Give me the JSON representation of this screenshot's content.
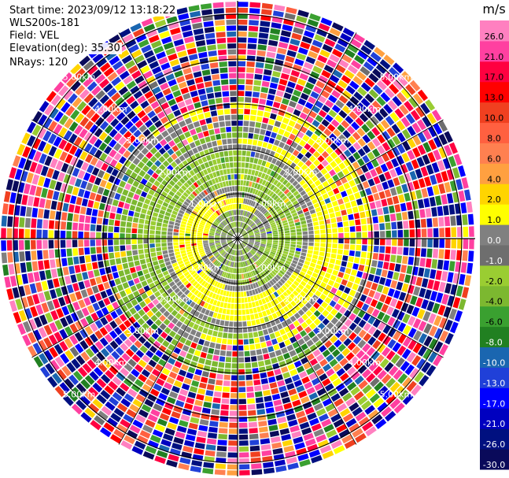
{
  "header": {
    "start_time": "Start time: 2023/09/12 13:18:22",
    "instrument": "WLS200s-181",
    "field": "Field: VEL",
    "elevation": "Elevation(deg): 35.30",
    "nrays": "NRays: 120"
  },
  "chart_data": {
    "type": "heatmap",
    "projection": "polar (PPI)",
    "range_rings_km": [
      1.0,
      2.0,
      3.0,
      4.0,
      5.0
    ],
    "ring_labels": [
      "1.00km",
      "2.00km",
      "3.00km",
      "4.00km",
      "5.00km"
    ],
    "colorbar": {
      "unit": "m/s",
      "bounds": [
        -30,
        -26,
        -21,
        -17,
        -13,
        -10,
        -8,
        -6,
        -4,
        -2,
        -1,
        0,
        1,
        2,
        4,
        6,
        8,
        10,
        13,
        17,
        21,
        26,
        30
      ],
      "colors": [
        "#0a0a5a",
        "#001080",
        "#0000c0",
        "#0000ff",
        "#2040d8",
        "#1a66b0",
        "#218021",
        "#3aa030",
        "#7cb830",
        "#9acd32",
        "#6e6e6e",
        "#808080",
        "#ffff00",
        "#ffd400",
        "#ffa040",
        "#ff8050",
        "#ff6040",
        "#f04020",
        "#ff0000",
        "#ff0040",
        "#ff40a0",
        "#ff80c0"
      ],
      "tick_labels": [
        "-30.0",
        "-26.0",
        "-21.0",
        "-17.0",
        "-13.0",
        "-10.0",
        "-8.0",
        "-6.0",
        "-4.0",
        "-2.0",
        "-1.0",
        "0.0",
        "1.0",
        "2.0",
        "4.0",
        "6.0",
        "8.0",
        "10.0",
        "13.0",
        "17.0",
        "21.0",
        "26.0"
      ]
    },
    "n_rays": 120,
    "max_range_km": 5.3
  }
}
